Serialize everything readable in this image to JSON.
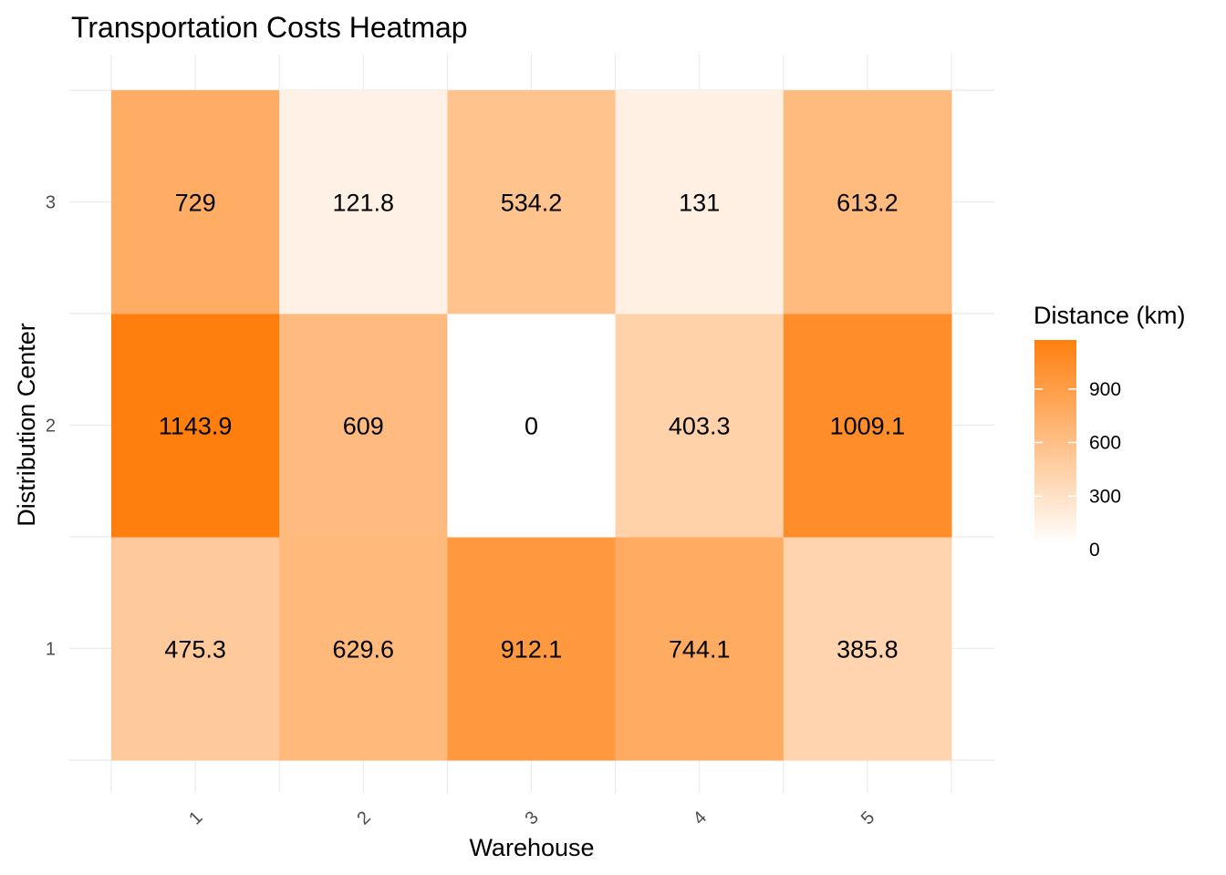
{
  "chart_data": {
    "type": "heatmap",
    "title": "Transportation Costs Heatmap",
    "xlabel": "Warehouse",
    "ylabel": "Distribution Center",
    "x_categories": [
      "1",
      "2",
      "3",
      "4",
      "5"
    ],
    "y_categories": [
      "1",
      "2",
      "3"
    ],
    "values": [
      [
        475.3,
        629.6,
        912.1,
        744.1,
        385.8
      ],
      [
        1143.9,
        609,
        0,
        403.3,
        1009.1
      ],
      [
        729,
        121.8,
        534.2,
        131,
        613.2
      ]
    ],
    "value_labels": [
      [
        "475.3",
        "629.6",
        "912.1",
        "744.1",
        "385.8"
      ],
      [
        "1143.9",
        "609",
        "0",
        "403.3",
        "1009.1"
      ],
      [
        "729",
        "121.8",
        "534.2",
        "131",
        "613.2"
      ]
    ],
    "color_low": "#ffffff",
    "color_high": "#ff7f0e",
    "value_range": [
      0,
      1143.9
    ],
    "legend": {
      "title": "Distance (km)",
      "ticks": [
        0,
        300,
        600,
        900
      ],
      "tick_labels": [
        "0",
        "300",
        "600",
        "900"
      ],
      "placement": "right"
    },
    "grid": true,
    "x_tick_rotation": "45 degrees"
  }
}
